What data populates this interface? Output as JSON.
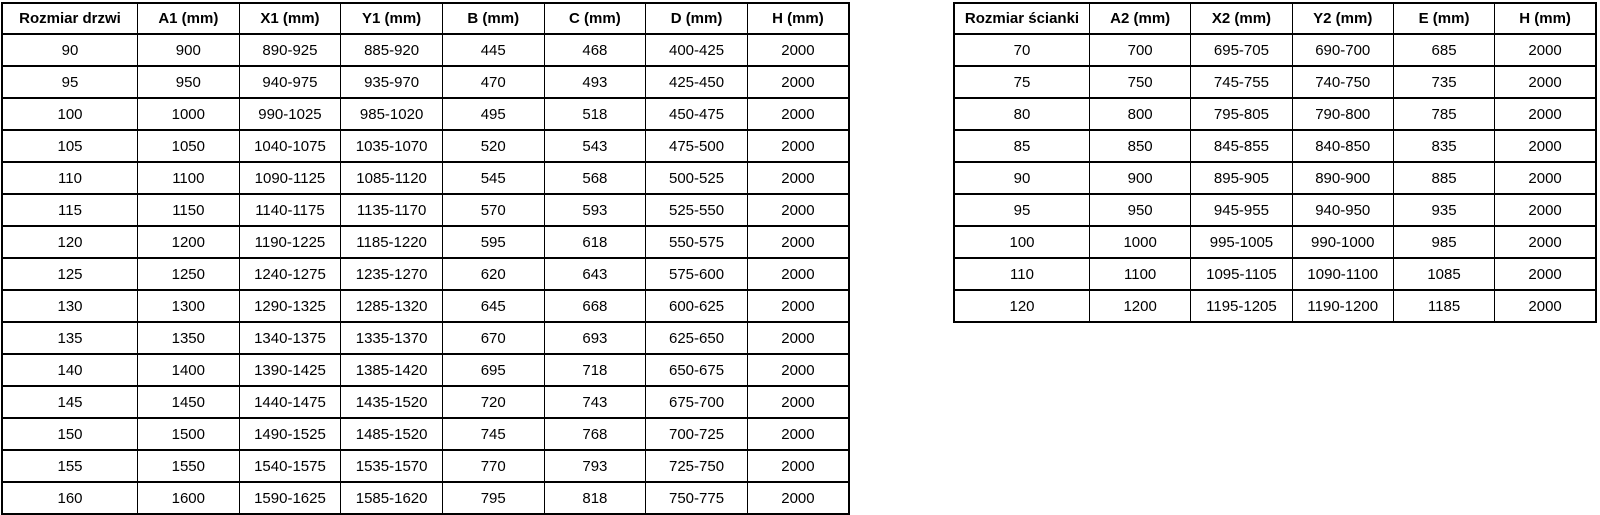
{
  "colors": {
    "background": "#ffffff",
    "border": "#000000",
    "text": "#000000"
  },
  "door_table": {
    "name": "Rozmiar drzwi",
    "headers": [
      "Rozmiar drzwi",
      "A1 (mm)",
      "X1 (mm)",
      "Y1 (mm)",
      "B (mm)",
      "C (mm)",
      "D (mm)",
      "H (mm)"
    ],
    "rows": [
      [
        "90",
        "900",
        "890-925",
        "885-920",
        "445",
        "468",
        "400-425",
        "2000"
      ],
      [
        "95",
        "950",
        "940-975",
        "935-970",
        "470",
        "493",
        "425-450",
        "2000"
      ],
      [
        "100",
        "1000",
        "990-1025",
        "985-1020",
        "495",
        "518",
        "450-475",
        "2000"
      ],
      [
        "105",
        "1050",
        "1040-1075",
        "1035-1070",
        "520",
        "543",
        "475-500",
        "2000"
      ],
      [
        "110",
        "1100",
        "1090-1125",
        "1085-1120",
        "545",
        "568",
        "500-525",
        "2000"
      ],
      [
        "115",
        "1150",
        "1140-1175",
        "1135-1170",
        "570",
        "593",
        "525-550",
        "2000"
      ],
      [
        "120",
        "1200",
        "1190-1225",
        "1185-1220",
        "595",
        "618",
        "550-575",
        "2000"
      ],
      [
        "125",
        "1250",
        "1240-1275",
        "1235-1270",
        "620",
        "643",
        "575-600",
        "2000"
      ],
      [
        "130",
        "1300",
        "1290-1325",
        "1285-1320",
        "645",
        "668",
        "600-625",
        "2000"
      ],
      [
        "135",
        "1350",
        "1340-1375",
        "1335-1370",
        "670",
        "693",
        "625-650",
        "2000"
      ],
      [
        "140",
        "1400",
        "1390-1425",
        "1385-1420",
        "695",
        "718",
        "650-675",
        "2000"
      ],
      [
        "145",
        "1450",
        "1440-1475",
        "1435-1520",
        "720",
        "743",
        "675-700",
        "2000"
      ],
      [
        "150",
        "1500",
        "1490-1525",
        "1485-1520",
        "745",
        "768",
        "700-725",
        "2000"
      ],
      [
        "155",
        "1550",
        "1540-1575",
        "1535-1570",
        "770",
        "793",
        "725-750",
        "2000"
      ],
      [
        "160",
        "1600",
        "1590-1625",
        "1585-1620",
        "795",
        "818",
        "750-775",
        "2000"
      ]
    ]
  },
  "wall_table": {
    "name": "Rozmiar ścianki",
    "headers": [
      "Rozmiar ścianki",
      "A2 (mm)",
      "X2 (mm)",
      "Y2 (mm)",
      "E (mm)",
      "H (mm)"
    ],
    "rows": [
      [
        "70",
        "700",
        "695-705",
        "690-700",
        "685",
        "2000"
      ],
      [
        "75",
        "750",
        "745-755",
        "740-750",
        "735",
        "2000"
      ],
      [
        "80",
        "800",
        "795-805",
        "790-800",
        "785",
        "2000"
      ],
      [
        "85",
        "850",
        "845-855",
        "840-850",
        "835",
        "2000"
      ],
      [
        "90",
        "900",
        "895-905",
        "890-900",
        "885",
        "2000"
      ],
      [
        "95",
        "950",
        "945-955",
        "940-950",
        "935",
        "2000"
      ],
      [
        "100",
        "1000",
        "995-1005",
        "990-1000",
        "985",
        "2000"
      ],
      [
        "110",
        "1100",
        "1095-1105",
        "1090-1100",
        "1085",
        "2000"
      ],
      [
        "120",
        "1200",
        "1195-1205",
        "1190-1200",
        "1185",
        "2000"
      ]
    ]
  }
}
